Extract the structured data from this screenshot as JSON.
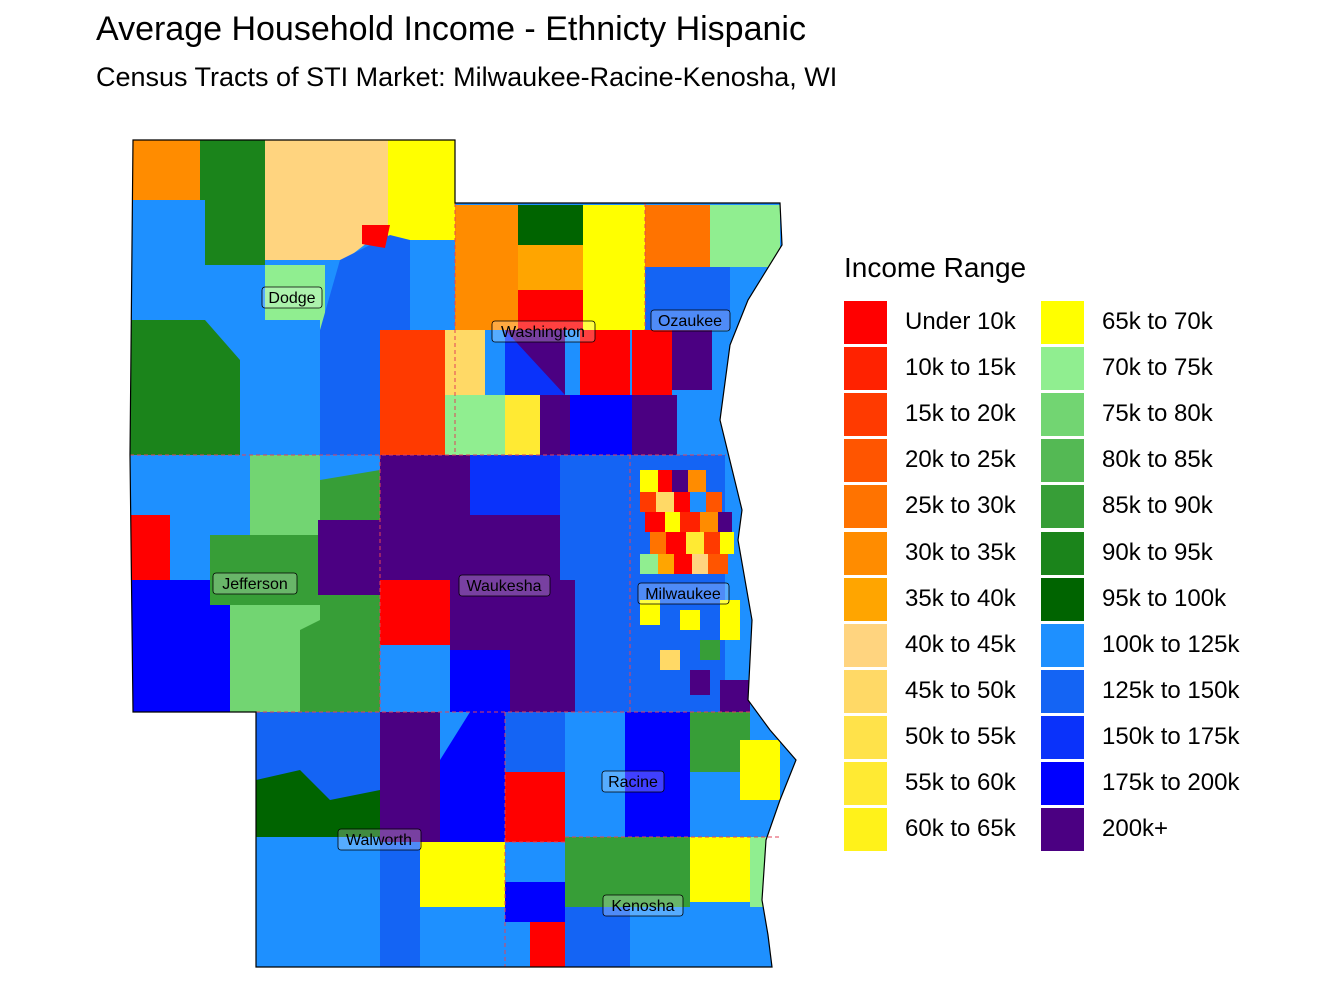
{
  "title": "Average Household Income - Ethnicty Hispanic",
  "subtitle": "Census Tracts of STI Market: Milwaukee-Racine-Kenosha, WI",
  "legend": {
    "title": "Income Range",
    "items": [
      {
        "label": "Under 10k",
        "color": "#FF0000"
      },
      {
        "label": "10k to 15k",
        "color": "#FF2200"
      },
      {
        "label": "15k to 20k",
        "color": "#FF3A00"
      },
      {
        "label": "20k to 25k",
        "color": "#FF5500"
      },
      {
        "label": "25k to 30k",
        "color": "#FF7300"
      },
      {
        "label": "30k to 35k",
        "color": "#FF8C00"
      },
      {
        "label": "35k to 40k",
        "color": "#FFA500"
      },
      {
        "label": "40k to 45k",
        "color": "#FFD47F"
      },
      {
        "label": "45k to 50k",
        "color": "#FFD966"
      },
      {
        "label": "50k to 55k",
        "color": "#FFE24A"
      },
      {
        "label": "55k to 60k",
        "color": "#FFEA33"
      },
      {
        "label": "60k to 65k",
        "color": "#FFF21A"
      },
      {
        "label": "65k to 70k",
        "color": "#FFFF00"
      },
      {
        "label": "70k to 75k",
        "color": "#90EE90"
      },
      {
        "label": "75k to 80k",
        "color": "#72D572"
      },
      {
        "label": "80k to 85k",
        "color": "#54B954"
      },
      {
        "label": "85k to 90k",
        "color": "#379E37"
      },
      {
        "label": "90k to 95k",
        "color": "#1B841B"
      },
      {
        "label": "95k to 100k",
        "color": "#006400"
      },
      {
        "label": "100k to 125k",
        "color": "#1E90FF"
      },
      {
        "label": "125k to 150k",
        "color": "#1464F4"
      },
      {
        "label": "150k to 175k",
        "color": "#0A32FA"
      },
      {
        "label": "175k to 200k",
        "color": "#0000FF"
      },
      {
        "label": "200k+",
        "color": "#4B0082"
      }
    ]
  },
  "counties": [
    "Dodge",
    "Washington",
    "Ozaukee",
    "Jefferson",
    "Waukesha",
    "Milwaukee",
    "Racine",
    "Walworth",
    "Kenosha"
  ]
}
